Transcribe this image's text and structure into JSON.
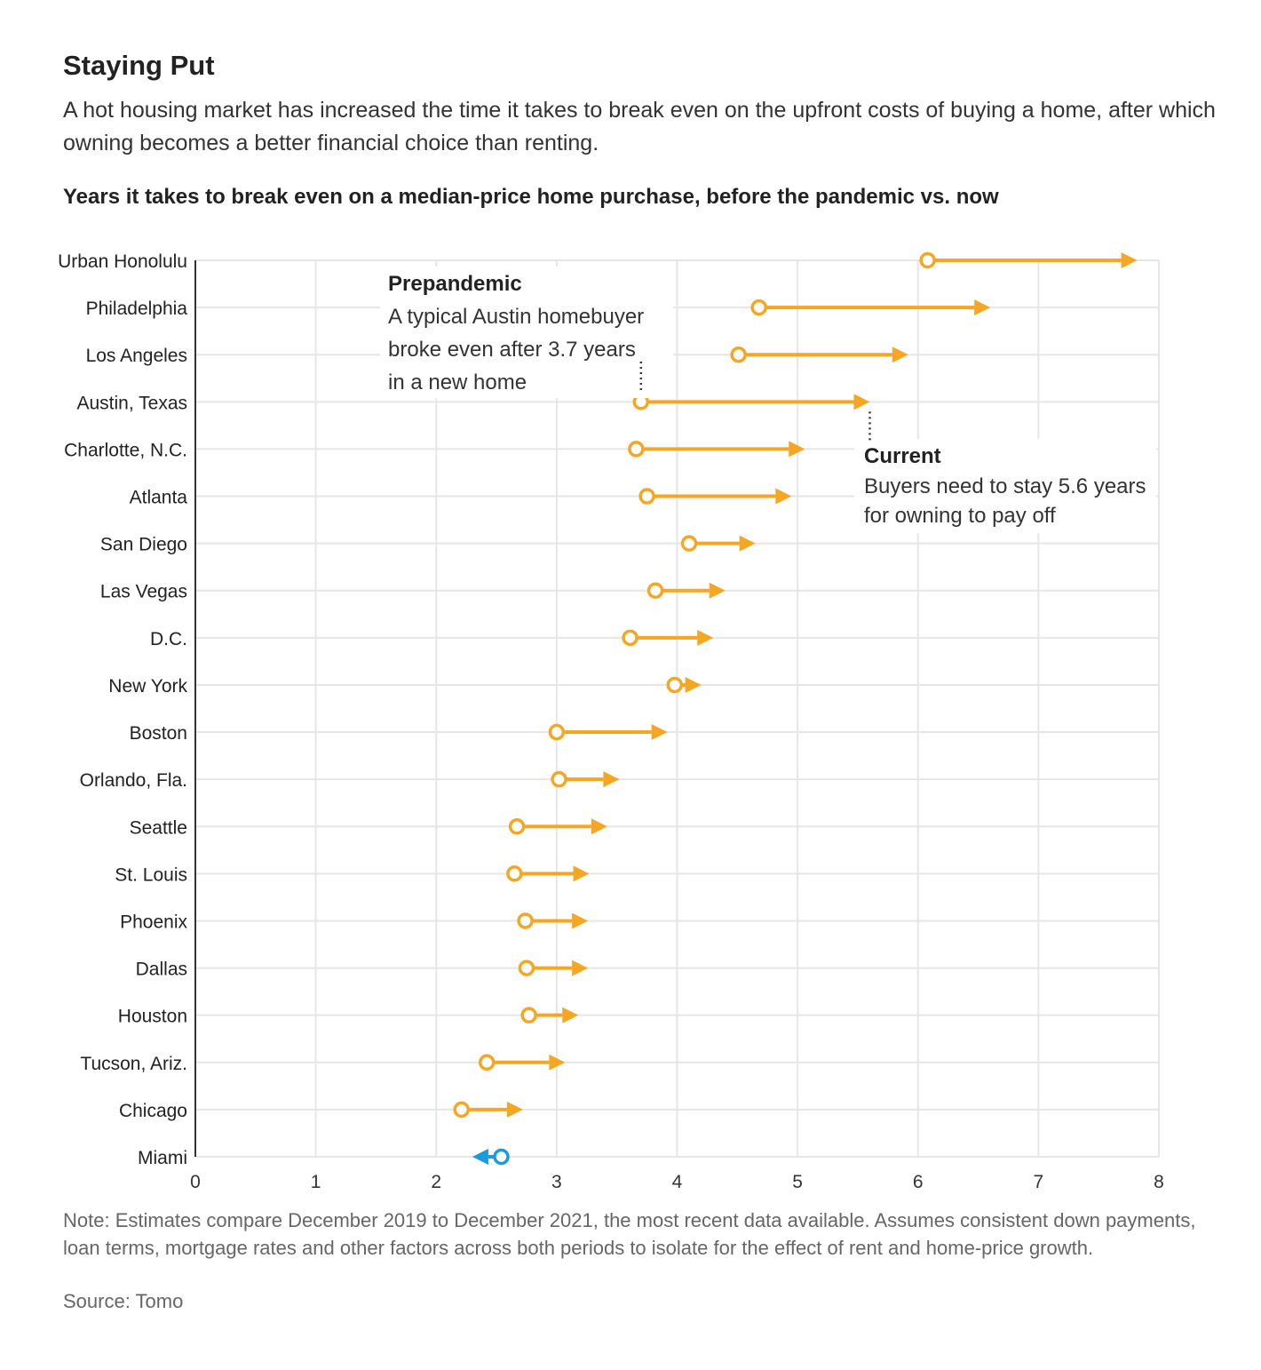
{
  "header": {
    "title": "Staying Put",
    "subtitle": "A hot housing market has increased the time it takes to break even on the upfront costs of buying a home, after which owning becomes a better financial choice than renting."
  },
  "footer": {
    "note": "Note: Estimates compare December 2019 to December 2021, the most recent data available. Assumes consistent down payments, loan terms, mortgage rates and other factors across both periods to isolate for the effect of rent and home-price growth.",
    "source": "Source: Tomo"
  },
  "colors": {
    "increase": "#f5a623",
    "decrease": "#1a9bdc",
    "grid": "#e6e6e6",
    "axis": "#333333",
    "text": "#222222"
  },
  "chart_data": {
    "type": "dumbbell-arrow",
    "title": "Years it takes to break even on a median-price home purchase, before the pandemic vs. now",
    "xlabel": "",
    "ylabel": "",
    "xlim": [
      0,
      8
    ],
    "xticks": [
      0,
      1,
      2,
      3,
      4,
      5,
      6,
      7,
      8
    ],
    "grid": true,
    "series": [
      {
        "name": "Prepandemic",
        "marker": "open circle"
      },
      {
        "name": "Current",
        "marker": "arrowhead"
      }
    ],
    "rows": [
      {
        "city": "Urban Honolulu",
        "before": 6.08,
        "now": 7.82
      },
      {
        "city": "Philadelphia",
        "before": 4.68,
        "now": 6.6
      },
      {
        "city": "Los Angeles",
        "before": 4.51,
        "now": 5.92
      },
      {
        "city": "Austin, Texas",
        "before": 3.7,
        "now": 5.6
      },
      {
        "city": "Charlotte, N.C.",
        "before": 3.66,
        "now": 5.06
      },
      {
        "city": "Atlanta",
        "before": 3.75,
        "now": 4.95
      },
      {
        "city": "San Diego",
        "before": 4.1,
        "now": 4.65
      },
      {
        "city": "Las Vegas",
        "before": 3.82,
        "now": 4.4
      },
      {
        "city": "D.C.",
        "before": 3.61,
        "now": 4.3
      },
      {
        "city": "New York",
        "before": 3.98,
        "now": 4.2
      },
      {
        "city": "Boston",
        "before": 3.0,
        "now": 3.92
      },
      {
        "city": "Orlando, Fla.",
        "before": 3.02,
        "now": 3.52
      },
      {
        "city": "Seattle",
        "before": 2.67,
        "now": 3.42
      },
      {
        "city": "St. Louis",
        "before": 2.65,
        "now": 3.27
      },
      {
        "city": "Phoenix",
        "before": 2.74,
        "now": 3.26
      },
      {
        "city": "Dallas",
        "before": 2.75,
        "now": 3.26
      },
      {
        "city": "Houston",
        "before": 2.77,
        "now": 3.18
      },
      {
        "city": "Tucson, Ariz.",
        "before": 2.42,
        "now": 3.07
      },
      {
        "city": "Chicago",
        "before": 2.21,
        "now": 2.72
      },
      {
        "city": "Miami",
        "before": 2.54,
        "now": 2.3
      }
    ],
    "annotations": [
      {
        "id": "prepandemic",
        "heading": "Prepandemic",
        "lines": [
          "A typical Austin homebuyer",
          "broke even after 3.7 years",
          "in a new home"
        ]
      },
      {
        "id": "current",
        "heading": "Current",
        "lines": [
          "Buyers need to stay 5.6 years",
          "for owning to pay off"
        ]
      }
    ]
  }
}
